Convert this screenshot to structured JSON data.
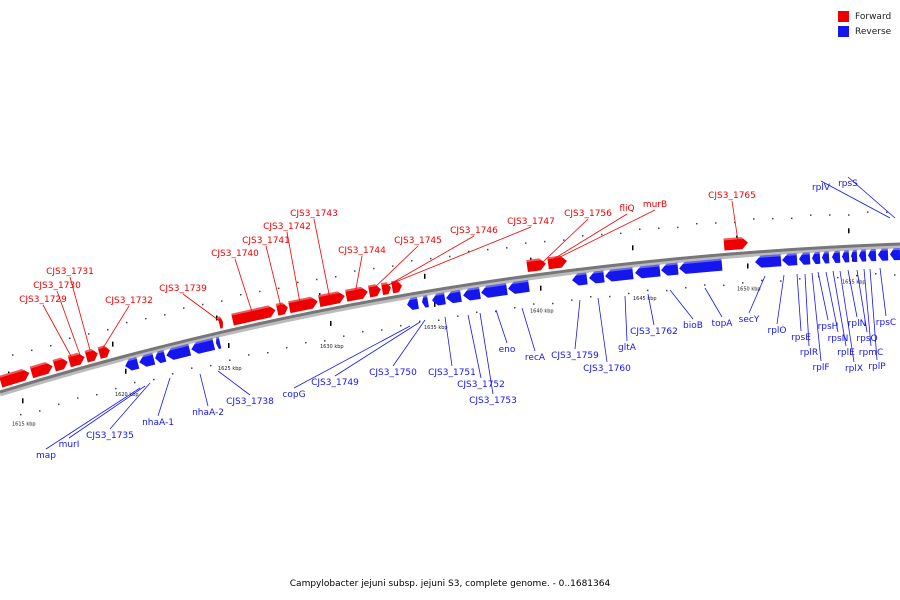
{
  "caption": "Campylobacter jejuni subsp. jejuni S3, complete genome. - 0..1681364",
  "legend": [
    {
      "label": "Forward",
      "color": "#ee0000"
    },
    {
      "label": "Reverse",
      "color": "#1515ee"
    }
  ],
  "colors": {
    "forward": "#ee0000",
    "reverse": "#1515ee",
    "axis": "#888888"
  },
  "scale_labels": [
    "1615 kbp",
    "1620 kbp",
    "1625 kbp",
    "1630 kbp",
    "1635 kbp",
    "1640 kbp",
    "1645 kbp",
    "1650 kbp",
    "1655 kbp"
  ],
  "forward_genes": [
    "CJS3_1729",
    "CJS3_1730",
    "CJS3_1731",
    "CJS3_1732",
    "CJS3_1739",
    "CJS3_1740",
    "CJS3_1741",
    "CJS3_1742",
    "CJS3_1743",
    "CJS3_1744",
    "CJS3_1745",
    "CJS3_1746",
    "CJS3_1747",
    "CJS3_1756",
    "fliQ",
    "murB",
    "CJS3_1765"
  ],
  "reverse_genes": [
    "map",
    "murI",
    "CJS3_1735",
    "nhaA-1",
    "nhaA-2",
    "CJS3_1738",
    "copG",
    "CJS3_1749",
    "CJS3_1750",
    "CJS3_1751",
    "CJS3_1752",
    "CJS3_1753",
    "eno",
    "recA",
    "CJS3_1759",
    "CJS3_1760",
    "gltA",
    "CJS3_1762",
    "bioB",
    "topA",
    "secY",
    "rplO",
    "rpsE",
    "rplR",
    "rplF",
    "rpsH",
    "rpsN",
    "rplE",
    "rplX",
    "rplN",
    "rpsQ",
    "rpmC",
    "rplP",
    "rpsC",
    "rplV",
    "rpsS"
  ]
}
